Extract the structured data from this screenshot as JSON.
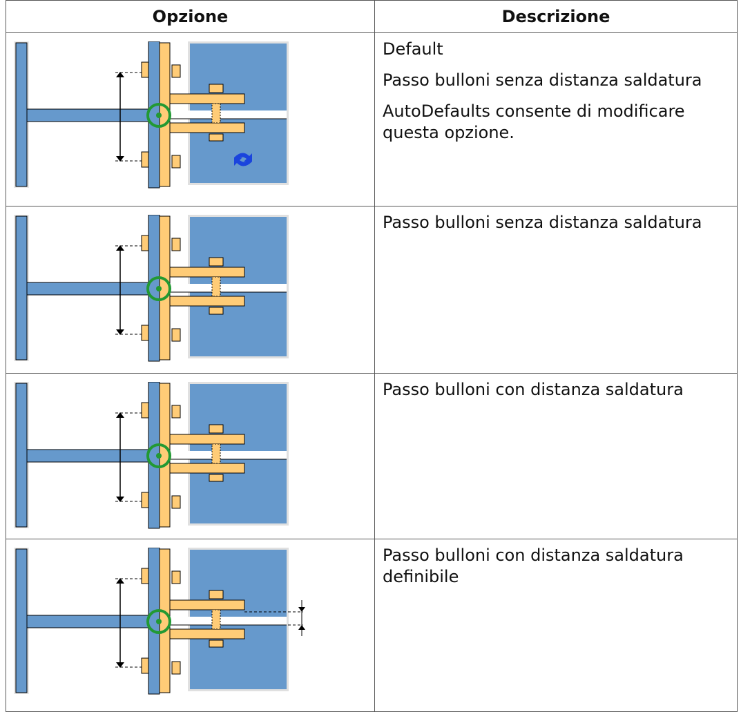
{
  "table": {
    "header": [
      "Opzione",
      "Descrizione"
    ],
    "rows": [
      [
        "Default",
        "Passo bulloni senza distanza saldatura",
        "AutoDefaults consente di modificare questa opzione."
      ],
      [
        "Passo bulloni senza distanza saldatura"
      ],
      [
        "Passo bulloni con distanza saldatura"
      ],
      [
        "Passo bulloni con distanza saldatura definibile"
      ]
    ]
  }
}
